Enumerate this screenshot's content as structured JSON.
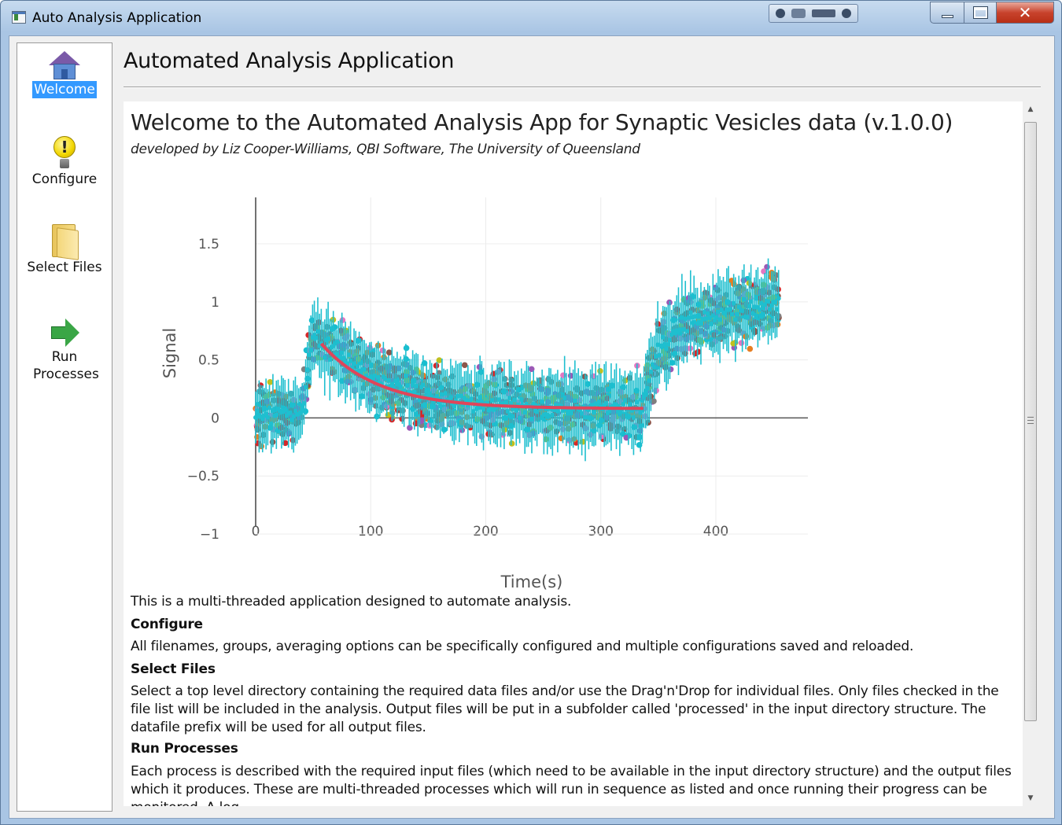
{
  "window": {
    "title": "Auto Analysis Application",
    "close_glyph": "✕"
  },
  "sidebar": {
    "items": [
      {
        "label": "Welcome",
        "icon": "home-icon",
        "selected": true
      },
      {
        "label": "Configure",
        "icon": "lightbulb-warning-icon",
        "selected": false
      },
      {
        "label": "Select Files",
        "icon": "folder-icon",
        "selected": false
      },
      {
        "label": "Run Processes",
        "icon": "arrow-right-icon",
        "selected": false
      }
    ]
  },
  "main": {
    "title": "Automated Analysis Application"
  },
  "welcome": {
    "heading": "Welcome to the Automated Analysis App for Synaptic Vesicles data (v.1.0.0)",
    "subtitle": "developed by Liz Cooper-Williams, QBI Software, The University of Queensland",
    "intro": "This is a multi-threaded application designed to automate analysis.",
    "configure_heading": "Configure",
    "configure_text": "All filenames, groups, averaging options can be specifically configured and multiple configurations saved and reloaded.",
    "select_heading": "Select Files",
    "select_text": "Select a top level directory containing the required data files and/or use the Drag'n'Drop for individual files. Only files checked in the file list will be included in the analysis. Output files will be put in a subfolder called 'processed' in the input directory structure. The datafile prefix will be used for all output files.",
    "run_heading": "Run Processes",
    "run_text": "Each process is described with the required input files (which need to be available in the input directory structure) and the output files which it produces. These are multi-threaded processes which will run in sequence as listed and once running their progress can be monitored. A log"
  },
  "chart_data": {
    "type": "scatter",
    "xlabel": "Time(s)",
    "ylabel": "Signal",
    "xlim": [
      0,
      480
    ],
    "ylim": [
      -1,
      1.9
    ],
    "x_ticks": [
      0,
      100,
      200,
      300,
      400
    ],
    "x_tick_labels": [
      "0",
      "100",
      "200",
      "300",
      "400"
    ],
    "y_ticks": [
      1.5,
      1,
      0.5,
      0,
      -0.5,
      -1
    ],
    "y_tick_labels": [
      "1.5",
      "1",
      "0.5",
      "0",
      "−0.5",
      "−1"
    ],
    "series_colors": [
      "#9b59b6",
      "#c0c020",
      "#e67e22",
      "#8c564b",
      "#e377c2",
      "#7f7f7f",
      "#d62728",
      "#17becf"
    ],
    "main_series_color": "#1fbfcf",
    "fit_color": "#e0455a",
    "fit_curve": {
      "x_start": 57,
      "x_end": 338,
      "y_start": 0.64,
      "y_end": 0.08,
      "tau": 50
    },
    "envelope": [
      {
        "x": 0,
        "center": 0.02,
        "spread": 0.32
      },
      {
        "x": 40,
        "center": 0.05,
        "spread": 0.32
      },
      {
        "x": 50,
        "center": 0.75,
        "spread": 0.35
      },
      {
        "x": 60,
        "center": 0.62,
        "spread": 0.38
      },
      {
        "x": 100,
        "center": 0.35,
        "spread": 0.34
      },
      {
        "x": 150,
        "center": 0.17,
        "spread": 0.36
      },
      {
        "x": 200,
        "center": 0.1,
        "spread": 0.38
      },
      {
        "x": 300,
        "center": 0.08,
        "spread": 0.38
      },
      {
        "x": 335,
        "center": 0.08,
        "spread": 0.38
      },
      {
        "x": 350,
        "center": 0.6,
        "spread": 0.38
      },
      {
        "x": 380,
        "center": 0.85,
        "spread": 0.38
      },
      {
        "x": 455,
        "center": 1.0,
        "spread": 0.4
      }
    ]
  }
}
